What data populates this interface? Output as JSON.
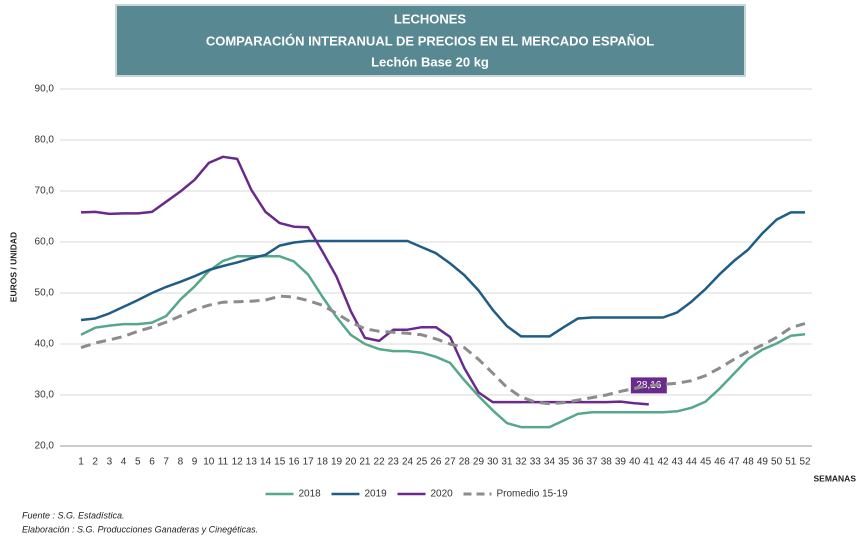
{
  "chart_data": {
    "type": "line",
    "title_lines": [
      "LECHONES",
      "COMPARACIÓN INTERANUAL DE PRECIOS EN EL MERCADO ESPAÑOL",
      "Lechón Base 20 kg"
    ],
    "title_color": "#588891",
    "y_label": "EUROS / UNIDAD",
    "x_label": "SEMANAS",
    "footnotes": [
      "Fuente :  S.G. Estadística.",
      "Elaboración : S.G. Producciones Ganaderas y Cinegéticas."
    ],
    "categories": [
      "1",
      "2",
      "3",
      "4",
      "5",
      "6",
      "7",
      "8",
      "9",
      "10",
      "11",
      "12",
      "13",
      "14",
      "15",
      "16",
      "17",
      "18",
      "19",
      "20",
      "21",
      "22",
      "23",
      "24",
      "25",
      "26",
      "27",
      "28",
      "29",
      "30",
      "31",
      "32",
      "33",
      "34",
      "35",
      "36",
      "37",
      "38",
      "39",
      "40",
      "41",
      "42",
      "43",
      "44",
      "45",
      "46",
      "47",
      "48",
      "49",
      "50",
      "51",
      "52"
    ],
    "ylim": [
      20,
      90
    ],
    "yticks": [
      {
        "value": 20,
        "label": "20,0"
      },
      {
        "value": 30,
        "label": "30,0"
      },
      {
        "value": 40,
        "label": "40,0"
      },
      {
        "value": 50,
        "label": "50,0"
      },
      {
        "value": 60,
        "label": "60,0"
      },
      {
        "value": 70,
        "label": "70,0"
      },
      {
        "value": 80,
        "label": "80,0"
      },
      {
        "value": 90,
        "label": "90,0"
      }
    ],
    "grid": true,
    "legend": "bottom",
    "series": [
      {
        "name": "2018",
        "color": "#55a888",
        "dashed": false,
        "values": [
          41.8,
          43.2,
          43.6,
          43.9,
          43.9,
          44.2,
          45.5,
          48.7,
          51.3,
          54.3,
          56.3,
          57.2,
          57.2,
          57.2,
          57.2,
          56.2,
          53.6,
          49.3,
          45.3,
          41.8,
          40,
          39,
          38.6,
          38.6,
          38.3,
          37.5,
          36.3,
          32.9,
          29.8,
          27,
          24.5,
          23.7,
          23.7,
          23.7,
          25,
          26.3,
          26.6,
          26.6,
          26.6,
          26.6,
          26.6,
          26.6,
          26.8,
          27.5,
          28.7,
          31.3,
          34.2,
          37.1,
          38.9,
          40.1,
          41.6,
          41.9
        ]
      },
      {
        "name": "2019",
        "color": "#1f5d87",
        "dashed": false,
        "values": [
          44.7,
          45,
          46,
          47.3,
          48.6,
          50,
          51.2,
          52.2,
          53.3,
          54.5,
          55.3,
          56,
          56.8,
          57.5,
          59.3,
          59.9,
          60.2,
          60.2,
          60.2,
          60.2,
          60.2,
          60.2,
          60.2,
          60.2,
          59,
          57.8,
          55.8,
          53.5,
          50.5,
          46.7,
          43.5,
          41.5,
          41.5,
          41.5,
          43.3,
          45,
          45.2,
          45.2,
          45.2,
          45.2,
          45.2,
          45.2,
          46.2,
          48.3,
          50.8,
          53.7,
          56.3,
          58.5,
          61.7,
          64.4,
          65.8,
          65.8
        ]
      },
      {
        "name": "2020",
        "color": "#6a2a8c",
        "dashed": false,
        "values": [
          65.8,
          65.9,
          65.5,
          65.6,
          65.6,
          65.9,
          67.9,
          69.9,
          72.2,
          75.5,
          76.7,
          76.3,
          70.2,
          65.9,
          63.7,
          63,
          62.9,
          58.2,
          53.2,
          46.5,
          41.2,
          40.6,
          42.8,
          42.8,
          43.3,
          43.3,
          41.4,
          35.3,
          30.5,
          28.6,
          28.6,
          28.6,
          28.6,
          28.6,
          28.6,
          28.6,
          28.6,
          28.6,
          28.7,
          28.4,
          28.16,
          null,
          null,
          null,
          null,
          null,
          null,
          null,
          null,
          null,
          null,
          null
        ],
        "value_labels": [
          null,
          null,
          null,
          null,
          null,
          null,
          null,
          null,
          null,
          null,
          null,
          null,
          null,
          null,
          null,
          null,
          null,
          null,
          null,
          null,
          null,
          null,
          null,
          null,
          null,
          null,
          null,
          null,
          null,
          null,
          null,
          null,
          null,
          null,
          null,
          null,
          null,
          null,
          null,
          null,
          "28,16",
          null,
          null,
          null,
          null,
          null,
          null,
          null,
          null,
          null,
          null,
          null
        ]
      },
      {
        "name": "Promedio 15-19",
        "color": "#8c8c8c",
        "dashed": true,
        "values": [
          39.3,
          40.2,
          40.8,
          41.5,
          42.5,
          43.3,
          44.3,
          45.5,
          46.7,
          47.6,
          48.2,
          48.3,
          48.4,
          48.6,
          49.4,
          49.2,
          48.5,
          47.6,
          46,
          44.3,
          43,
          42.5,
          42.3,
          42.1,
          41.8,
          41,
          40,
          39.3,
          37,
          34.3,
          31.5,
          29.6,
          28.6,
          28.3,
          28.5,
          29,
          29.5,
          30,
          30.7,
          31.3,
          31.8,
          32.1,
          32.3,
          32.8,
          33.8,
          35.3,
          37,
          38.5,
          39.8,
          41.3,
          43.2,
          44
        ]
      }
    ]
  }
}
